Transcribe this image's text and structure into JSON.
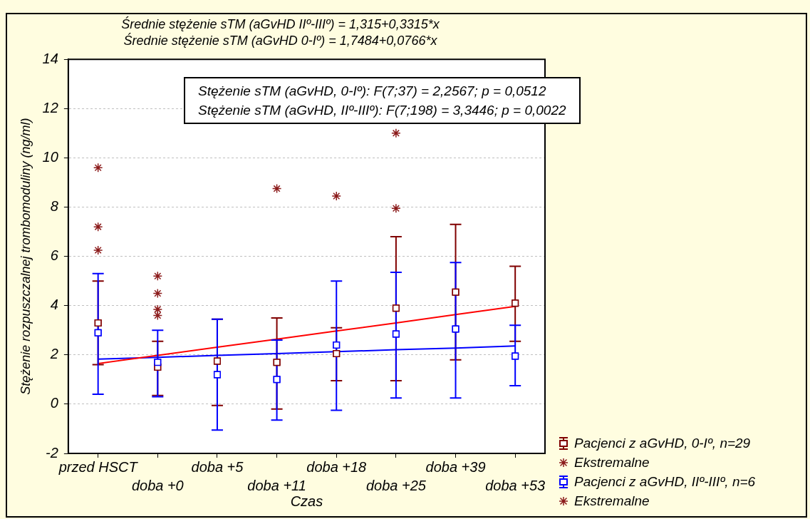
{
  "chart_data": {
    "type": "scatter",
    "title": "Średnie stężenie sTM (aGvHD IIº-IIIº) = 1,315+0,3315*x",
    "subtitle": "Średnie stężenie sTM (aGvHD 0-Iº) = 1,7484+0,0766*x",
    "xlabel": "Czas",
    "ylabel": "Stężenie rozpuszczalnej trombomoduliny (ng/ml)",
    "annotations": [
      "Stężenie sTM (aGvHD, 0-Iº):   F(7;37) = 2,2567; p = 0,0512",
      "Stężenie sTM (aGvHD, IIº-IIIº):   F(7;198) = 3,3446; p = 0,0022"
    ],
    "categories": [
      "przed HSCT",
      "doba +0",
      "doba +5",
      "doba +11",
      "doba +18",
      "doba +25",
      "doba +39",
      "doba +53"
    ],
    "ylim": [
      -2,
      14
    ],
    "yticks": [
      -2,
      0,
      2,
      4,
      6,
      8,
      10,
      12,
      14
    ],
    "grid": "y",
    "legend": "bottom right",
    "series": [
      {
        "name": "Pacjenci z aGvHD, 0-Iº, n=29",
        "type": "scatter",
        "marker": "square",
        "color": "#800000",
        "values": [
          3.3,
          1.5,
          1.75,
          1.7,
          2.05,
          3.9,
          4.55,
          4.1
        ],
        "errors": [
          [
            1.6,
            5.0
          ],
          [
            0.35,
            2.55
          ],
          [
            -0.05,
            3.45
          ],
          [
            -0.2,
            3.5
          ],
          [
            0.95,
            3.1
          ],
          [
            0.95,
            6.8
          ],
          [
            1.8,
            7.3
          ],
          [
            2.55,
            5.6
          ]
        ]
      },
      {
        "name": "Ekstremalne",
        "type": "scatter",
        "marker": "cross",
        "color": "#8b1a1a",
        "x": [
          "przed HSCT",
          "przed HSCT",
          "przed HSCT",
          "doba +0",
          "doba +0",
          "doba +0",
          "doba +0",
          "doba +11",
          "doba +18",
          "doba +25",
          "doba +25"
        ],
        "values": [
          9.6,
          7.2,
          6.25,
          5.2,
          4.5,
          3.85,
          3.6,
          8.75,
          8.45,
          11.0,
          7.95
        ]
      },
      {
        "name": "Pacjenci z aGvHD, IIº-IIIº, n=6",
        "type": "scatter",
        "marker": "square",
        "color": "#0000ff",
        "values": [
          2.9,
          1.7,
          1.2,
          1.0,
          2.4,
          2.85,
          3.05,
          1.95
        ],
        "errors": [
          [
            0.4,
            5.3
          ],
          [
            0.3,
            3.0
          ],
          [
            -1.05,
            3.45
          ],
          [
            -0.65,
            2.6
          ],
          [
            -0.25,
            5.0
          ],
          [
            0.25,
            5.35
          ],
          [
            0.25,
            5.75
          ],
          [
            0.75,
            3.2
          ]
        ]
      },
      {
        "name": "Ekstremalne",
        "type": "scatter",
        "marker": "cross",
        "color": "#8b1a1a",
        "values": [
          null,
          null,
          null,
          null,
          null,
          null,
          null,
          null
        ]
      },
      {
        "type": "line",
        "marker": "none",
        "color": "#ff0000",
        "values": [
          1.65,
          1.98,
          2.31,
          2.64,
          2.97,
          3.3,
          3.64,
          3.97
        ]
      },
      {
        "type": "line",
        "marker": "none",
        "color": "#0000ff",
        "values": [
          1.83,
          1.9,
          1.98,
          2.05,
          2.13,
          2.21,
          2.28,
          2.36
        ]
      }
    ]
  }
}
